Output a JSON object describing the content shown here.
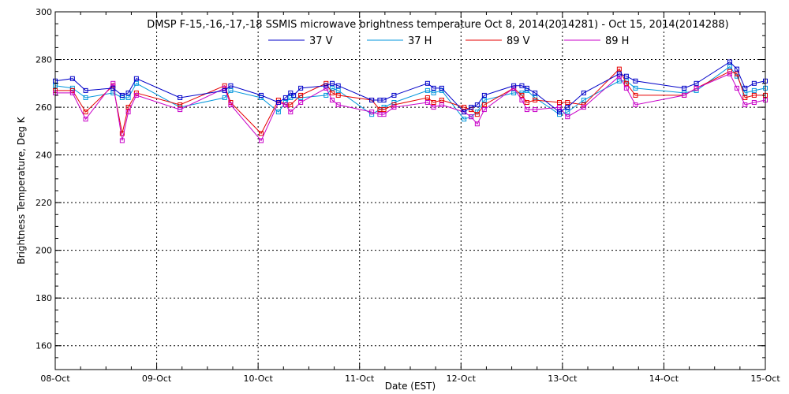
{
  "chart_data": {
    "type": "line",
    "title": "DMSP F-15,-16,-17,-18 SSMIS microwave brightness temperature Oct  8, 2014(2014281) - Oct 15, 2014(2014288)",
    "xlabel": "Date (EST)",
    "ylabel": "Brightness Temperature, Deg K",
    "xlim": [
      "08-Oct",
      "15-Oct"
    ],
    "ylim": [
      150,
      300
    ],
    "x_ticks": [
      "08-Oct",
      "09-Oct",
      "10-Oct",
      "11-Oct",
      "12-Oct",
      "13-Oct",
      "14-Oct",
      "15-Oct"
    ],
    "y_ticks": [
      "160",
      "180",
      "200",
      "220",
      "240",
      "260",
      "280",
      "300"
    ],
    "grid": true,
    "legend_position": "top",
    "x_unit": "days since 08-Oct",
    "series": [
      {
        "name": "37 V",
        "color": "#0000c8",
        "points": [
          [
            0.0,
            271
          ],
          [
            0.17,
            272
          ],
          [
            0.3,
            267
          ],
          [
            0.57,
            268
          ],
          [
            0.66,
            265
          ],
          [
            0.72,
            266
          ],
          [
            0.8,
            272
          ],
          [
            1.23,
            264
          ],
          [
            1.67,
            267
          ],
          [
            1.73,
            269
          ],
          [
            2.03,
            265
          ],
          [
            2.2,
            262
          ],
          [
            2.27,
            264
          ],
          [
            2.32,
            266
          ],
          [
            2.35,
            265
          ],
          [
            2.42,
            268
          ],
          [
            2.67,
            269
          ],
          [
            2.73,
            270
          ],
          [
            2.79,
            269
          ],
          [
            3.12,
            263
          ],
          [
            3.2,
            263
          ],
          [
            3.24,
            263
          ],
          [
            3.34,
            265
          ],
          [
            3.67,
            270
          ],
          [
            3.73,
            268
          ],
          [
            3.81,
            268
          ],
          [
            4.03,
            258
          ],
          [
            4.1,
            260
          ],
          [
            4.16,
            261
          ],
          [
            4.23,
            265
          ],
          [
            4.52,
            269
          ],
          [
            4.6,
            269
          ],
          [
            4.65,
            268
          ],
          [
            4.73,
            266
          ],
          [
            4.97,
            258
          ],
          [
            5.05,
            260
          ],
          [
            5.21,
            266
          ],
          [
            5.56,
            274
          ],
          [
            5.63,
            273
          ],
          [
            5.72,
            271
          ],
          [
            6.2,
            268
          ],
          [
            6.32,
            270
          ],
          [
            6.65,
            279
          ],
          [
            6.72,
            276
          ],
          [
            6.8,
            268
          ],
          [
            6.89,
            270
          ],
          [
            7.0,
            271
          ]
        ]
      },
      {
        "name": "37 H",
        "color": "#0096dc",
        "points": [
          [
            0.0,
            269
          ],
          [
            0.17,
            268
          ],
          [
            0.3,
            264
          ],
          [
            0.57,
            266
          ],
          [
            0.66,
            264
          ],
          [
            0.72,
            264
          ],
          [
            0.8,
            270
          ],
          [
            1.23,
            260
          ],
          [
            1.67,
            264
          ],
          [
            1.73,
            267
          ],
          [
            2.03,
            264
          ],
          [
            2.2,
            258
          ],
          [
            2.27,
            262
          ],
          [
            2.32,
            264
          ],
          [
            2.42,
            264
          ],
          [
            2.67,
            265
          ],
          [
            2.73,
            268
          ],
          [
            2.79,
            267
          ],
          [
            3.12,
            257
          ],
          [
            3.2,
            259
          ],
          [
            3.24,
            260
          ],
          [
            3.34,
            262
          ],
          [
            3.67,
            267
          ],
          [
            3.73,
            266
          ],
          [
            3.81,
            267
          ],
          [
            4.03,
            255
          ],
          [
            4.1,
            256
          ],
          [
            4.16,
            258
          ],
          [
            4.23,
            263
          ],
          [
            4.52,
            266
          ],
          [
            4.6,
            266
          ],
          [
            4.65,
            267
          ],
          [
            4.73,
            264
          ],
          [
            4.97,
            257
          ],
          [
            5.05,
            258
          ],
          [
            5.21,
            263
          ],
          [
            5.56,
            271
          ],
          [
            5.63,
            271
          ],
          [
            5.72,
            268
          ],
          [
            6.2,
            266
          ],
          [
            6.32,
            267
          ],
          [
            6.65,
            277
          ],
          [
            6.72,
            273
          ],
          [
            6.8,
            266
          ],
          [
            6.89,
            267
          ],
          [
            7.0,
            268
          ]
        ]
      },
      {
        "name": "89 V",
        "color": "#e60000",
        "points": [
          [
            0.0,
            267
          ],
          [
            0.17,
            267
          ],
          [
            0.3,
            258
          ],
          [
            0.57,
            269
          ],
          [
            0.66,
            249
          ],
          [
            0.72,
            260
          ],
          [
            0.8,
            266
          ],
          [
            1.23,
            261
          ],
          [
            1.67,
            269
          ],
          [
            1.73,
            262
          ],
          [
            2.03,
            249
          ],
          [
            2.2,
            263
          ],
          [
            2.27,
            261
          ],
          [
            2.32,
            261
          ],
          [
            2.42,
            265
          ],
          [
            2.67,
            270
          ],
          [
            2.73,
            266
          ],
          [
            2.79,
            265
          ],
          [
            3.12,
            263
          ],
          [
            3.2,
            259
          ],
          [
            3.24,
            259
          ],
          [
            3.34,
            261
          ],
          [
            3.67,
            264
          ],
          [
            3.73,
            262
          ],
          [
            3.81,
            263
          ],
          [
            4.03,
            260
          ],
          [
            4.1,
            259
          ],
          [
            4.16,
            257
          ],
          [
            4.23,
            261
          ],
          [
            4.52,
            268
          ],
          [
            4.6,
            265
          ],
          [
            4.65,
            262
          ],
          [
            4.73,
            263
          ],
          [
            4.97,
            262
          ],
          [
            5.05,
            262
          ],
          [
            5.21,
            261
          ],
          [
            5.56,
            276
          ],
          [
            5.63,
            270
          ],
          [
            5.72,
            265
          ],
          [
            6.2,
            265
          ],
          [
            6.32,
            268
          ],
          [
            6.65,
            275
          ],
          [
            6.72,
            274
          ],
          [
            6.8,
            264
          ],
          [
            6.89,
            265
          ],
          [
            7.0,
            265
          ]
        ]
      },
      {
        "name": "89 H",
        "color": "#c800c8",
        "points": [
          [
            0.0,
            266
          ],
          [
            0.17,
            266
          ],
          [
            0.3,
            255
          ],
          [
            0.57,
            270
          ],
          [
            0.66,
            246
          ],
          [
            0.72,
            258
          ],
          [
            0.8,
            265
          ],
          [
            1.23,
            259
          ],
          [
            1.67,
            268
          ],
          [
            1.73,
            261
          ],
          [
            2.03,
            246
          ],
          [
            2.2,
            262
          ],
          [
            2.27,
            261
          ],
          [
            2.32,
            258
          ],
          [
            2.42,
            262
          ],
          [
            2.67,
            268
          ],
          [
            2.73,
            263
          ],
          [
            2.79,
            261
          ],
          [
            3.12,
            258
          ],
          [
            3.2,
            257
          ],
          [
            3.24,
            257
          ],
          [
            3.34,
            260
          ],
          [
            3.67,
            262
          ],
          [
            3.73,
            260
          ],
          [
            3.81,
            261
          ],
          [
            4.03,
            258
          ],
          [
            4.1,
            256
          ],
          [
            4.16,
            253
          ],
          [
            4.23,
            259
          ],
          [
            4.52,
            268
          ],
          [
            4.6,
            263
          ],
          [
            4.65,
            259
          ],
          [
            4.73,
            259
          ],
          [
            4.97,
            260
          ],
          [
            5.05,
            256
          ],
          [
            5.21,
            260
          ],
          [
            5.56,
            273
          ],
          [
            5.63,
            268
          ],
          [
            5.72,
            261
          ],
          [
            6.2,
            265
          ],
          [
            6.32,
            268
          ],
          [
            6.65,
            274
          ],
          [
            6.72,
            268
          ],
          [
            6.8,
            261
          ],
          [
            6.89,
            262
          ],
          [
            7.0,
            263
          ]
        ]
      }
    ]
  }
}
